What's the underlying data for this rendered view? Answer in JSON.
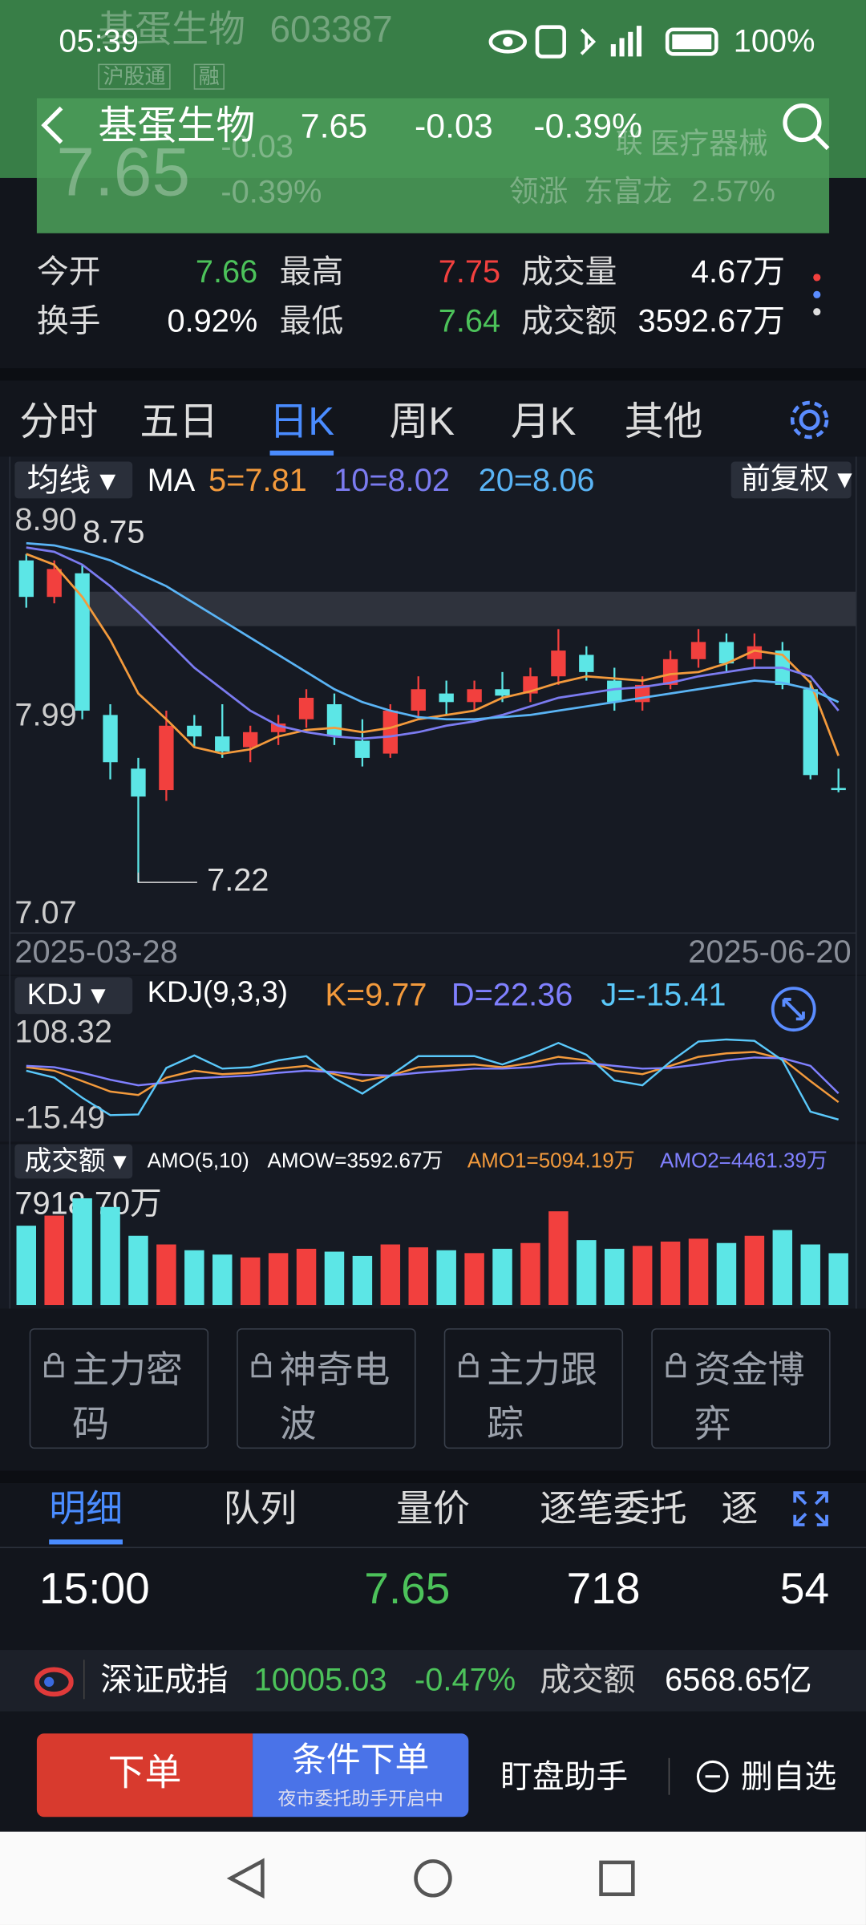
{
  "status_bar": {
    "time": "05:39",
    "battery": "100%"
  },
  "header": {
    "name": "基蛋生物",
    "code": "603387",
    "tags": [
      "沪股通",
      "融"
    ],
    "price": "7.65",
    "change": "-0.03",
    "change_pct": "-0.39%",
    "sector_tag": "联",
    "sector": "医疗器械",
    "leader_label": "领涨",
    "leader": "东富龙",
    "leader_pct": "2.57%"
  },
  "stats": [
    {
      "label": "今开",
      "value": "7.66",
      "color": "#4cc25a"
    },
    {
      "label": "最高",
      "value": "7.75",
      "color": "#f2403e"
    },
    {
      "label": "成交量",
      "value": "4.67万",
      "color": "#ffffff"
    },
    {
      "label": "换手",
      "value": "0.92%",
      "color": "#ffffff"
    },
    {
      "label": "最低",
      "value": "7.64",
      "color": "#4cc25a"
    },
    {
      "label": "成交额",
      "value": "3592.67万",
      "color": "#ffffff"
    }
  ],
  "tabs": [
    "分时",
    "五日",
    "日K",
    "周K",
    "月K",
    "其他"
  ],
  "kline": {
    "type": "candlestick",
    "menu": "均线",
    "ma_label": "MA",
    "adjust": "前复权",
    "x_labels": [
      "2025-03-28",
      "2025-06-20"
    ],
    "ylim": [
      7.07,
      8.9
    ],
    "yticks": [
      {
        "value": 8.9,
        "label": "8.90"
      },
      7.99,
      7.07
    ],
    "max_label": 8.75,
    "min_label": 7.22,
    "up_color": "#f2403e",
    "down_color": "#5ce6e6",
    "open": [
      8.72,
      8.55,
      8.66,
      8.0,
      7.75,
      7.65,
      7.95,
      7.9,
      7.85,
      7.92,
      7.98,
      8.05,
      7.88,
      7.82,
      8.02,
      8.1,
      8.06,
      8.12,
      8.1,
      8.18,
      8.28,
      8.16,
      8.06,
      8.14,
      8.26,
      8.34,
      8.26,
      8.3,
      8.12,
      7.66
    ],
    "high": [
      8.75,
      8.72,
      8.7,
      8.05,
      7.8,
      8.02,
      8.0,
      8.05,
      7.95,
      8.0,
      8.12,
      8.1,
      7.98,
      8.05,
      8.18,
      8.16,
      8.16,
      8.2,
      8.22,
      8.4,
      8.32,
      8.22,
      8.18,
      8.3,
      8.4,
      8.38,
      8.38,
      8.34,
      8.16,
      7.75
    ],
    "low": [
      8.5,
      8.52,
      7.98,
      7.7,
      7.22,
      7.6,
      7.85,
      7.8,
      7.78,
      7.86,
      7.94,
      7.86,
      7.76,
      7.8,
      7.98,
      8.0,
      8.02,
      8.06,
      8.06,
      8.14,
      8.16,
      8.02,
      8.02,
      8.12,
      8.22,
      8.2,
      8.22,
      8.12,
      7.7,
      7.64
    ],
    "close": [
      8.55,
      8.68,
      8.02,
      7.78,
      7.62,
      7.95,
      7.9,
      7.83,
      7.92,
      7.96,
      8.08,
      7.9,
      7.8,
      8.02,
      8.12,
      8.06,
      8.12,
      8.09,
      8.18,
      8.3,
      8.2,
      8.06,
      8.14,
      8.26,
      8.34,
      8.24,
      8.32,
      8.14,
      7.72,
      7.65
    ],
    "ma": [
      {
        "label": "5=7.81",
        "color": "#f39a3c",
        "values": [
          8.75,
          8.7,
          8.55,
          8.35,
          8.1,
          7.98,
          7.85,
          7.82,
          7.84,
          7.9,
          7.93,
          7.94,
          7.92,
          7.94,
          7.98,
          8.0,
          8.02,
          8.08,
          8.11,
          8.15,
          8.18,
          8.17,
          8.16,
          8.19,
          8.2,
          8.24,
          8.3,
          8.28,
          8.15,
          7.81
        ]
      },
      {
        "label": "10=8.02",
        "color": "#7b7bf0",
        "values": [
          8.78,
          8.76,
          8.7,
          8.6,
          8.48,
          8.35,
          8.22,
          8.12,
          8.02,
          7.95,
          7.92,
          7.9,
          7.89,
          7.9,
          7.92,
          7.95,
          7.97,
          8.0,
          8.04,
          8.08,
          8.1,
          8.12,
          8.13,
          8.15,
          8.18,
          8.2,
          8.22,
          8.22,
          8.18,
          8.02
        ]
      },
      {
        "label": "20=8.06",
        "color": "#5ab4f5",
        "values": [
          8.8,
          8.79,
          8.76,
          8.72,
          8.66,
          8.6,
          8.52,
          8.44,
          8.36,
          8.28,
          8.2,
          8.12,
          8.06,
          8.02,
          7.99,
          7.98,
          7.98,
          7.99,
          8.0,
          8.02,
          8.04,
          8.06,
          8.08,
          8.1,
          8.12,
          8.14,
          8.16,
          8.15,
          8.12,
          8.06
        ]
      }
    ]
  },
  "kdj": {
    "type": "line",
    "menu": "KDJ",
    "params": "KDJ(9,3,3)",
    "ylim": [
      -15.49,
      108.32
    ],
    "yticks": [
      108.32,
      -15.49
    ],
    "lines": [
      {
        "label": "K=9.77",
        "color": "#f39a3c",
        "values": [
          60,
          55,
          40,
          25,
          20,
          45,
          55,
          50,
          52,
          58,
          62,
          50,
          40,
          48,
          60,
          62,
          64,
          60,
          66,
          75,
          70,
          55,
          50,
          62,
          75,
          80,
          82,
          72,
          40,
          9.77
        ]
      },
      {
        "label": "D=22.36",
        "color": "#8080ff",
        "values": [
          62,
          60,
          52,
          42,
          34,
          38,
          44,
          46,
          48,
          52,
          55,
          53,
          49,
          48,
          52,
          55,
          58,
          58,
          60,
          65,
          66,
          62,
          58,
          59,
          64,
          70,
          74,
          73,
          62,
          22.36
        ]
      },
      {
        "label": "J=-15.41",
        "color": "#5ac8fa",
        "values": [
          55,
          45,
          16,
          -9,
          -8,
          59,
          77,
          58,
          60,
          70,
          76,
          44,
          22,
          48,
          76,
          76,
          76,
          64,
          78,
          95,
          78,
          41,
          34,
          68,
          97,
          100,
          98,
          70,
          -4,
          -15.41
        ]
      }
    ]
  },
  "amo": {
    "type": "bar",
    "menu": "成交额",
    "params": "AMO(5,10)",
    "amow": "AMOW=3592.67万",
    "amo1": {
      "label": "AMO1=5094.19万",
      "color": "#f39a3c"
    },
    "amo2": {
      "label": "AMO2=4461.39万",
      "color": "#8080ff"
    },
    "ylim": [
      0,
      7918.7
    ],
    "yticks": [
      {
        "value": 7918.7,
        "label": "7918.70万"
      }
    ],
    "values": [
      5500,
      6200,
      7400,
      6800,
      4800,
      4200,
      3800,
      3500,
      3300,
      3600,
      3900,
      3700,
      3400,
      4200,
      4000,
      3800,
      3600,
      3900,
      4300,
      6500,
      4500,
      3900,
      4100,
      4400,
      4600,
      4300,
      4800,
      5200,
      4200,
      3592.67
    ]
  },
  "tools": [
    "主力密码",
    "神奇电波",
    "主力跟踪",
    "资金博弈"
  ],
  "detail_tabs": [
    "明细",
    "队列",
    "量价",
    "逐笔委托",
    "逐"
  ],
  "detail_row": [
    "15:00",
    "7.65",
    "718",
    "54"
  ],
  "index_bar": {
    "name": "深证成指",
    "value": "10005.03",
    "change": "-0.47%",
    "amount_label": "成交额",
    "amount": "6568.65亿"
  },
  "bottom": {
    "order": "下单",
    "cond_order": "条件下单",
    "cond_sub": "夜市委托助手开启中",
    "watch": "盯盘助手",
    "remove": "删自选"
  }
}
